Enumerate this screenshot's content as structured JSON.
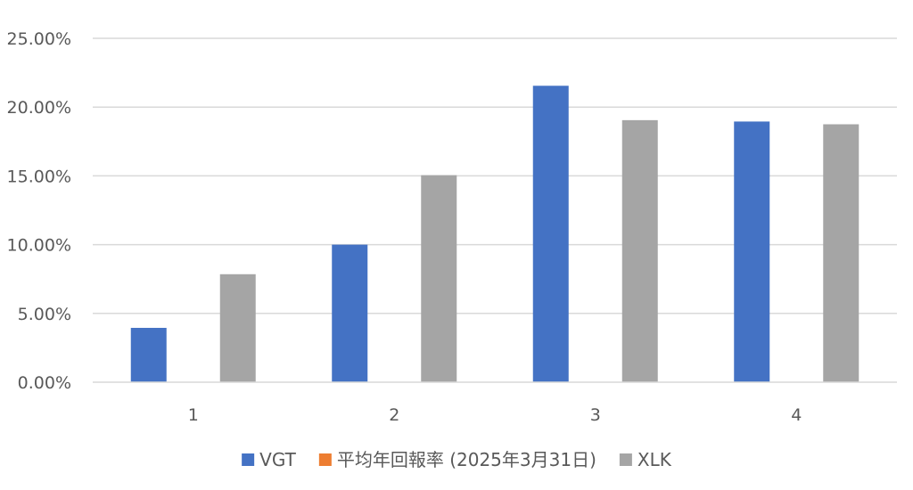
{
  "chart_data": {
    "type": "bar",
    "categories": [
      "1",
      "2",
      "3",
      "4"
    ],
    "series": [
      {
        "name": "VGT",
        "color": "#4472C4",
        "values": [
          3.95,
          10.0,
          21.55,
          18.95
        ]
      },
      {
        "name": "平均年回報率 (2025年3月31日)",
        "color": "#ED7D31",
        "values": [
          0,
          0,
          0,
          0
        ]
      },
      {
        "name": "XLK",
        "color": "#A5A5A5",
        "values": [
          7.85,
          15.05,
          19.05,
          18.75
        ]
      }
    ],
    "y_ticks": [
      "0.00%",
      "5.00%",
      "10.00%",
      "15.00%",
      "20.00%",
      "25.00%"
    ],
    "ylim": [
      0,
      25
    ],
    "y_unit": "%",
    "title": "",
    "xlabel": "",
    "ylabel": "",
    "grid": true,
    "gridline_color": "#D9D9D9",
    "legend_position": "bottom"
  }
}
